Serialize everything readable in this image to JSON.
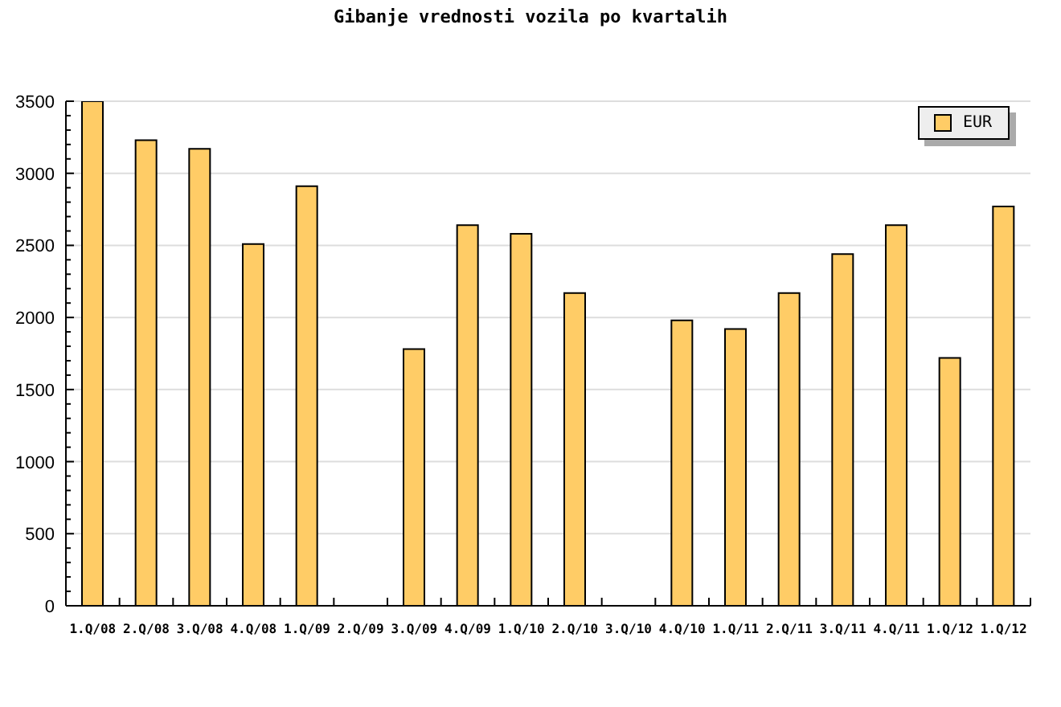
{
  "chart_data": {
    "type": "bar",
    "title": "Gibanje vrednosti vozila po kvartalih",
    "categories": [
      "1.Q/08",
      "2.Q/08",
      "3.Q/08",
      "4.Q/08",
      "1.Q/09",
      "2.Q/09",
      "3.Q/09",
      "4.Q/09",
      "1.Q/10",
      "2.Q/10",
      "3.Q/10",
      "4.Q/10",
      "1.Q/11",
      "2.Q/11",
      "3.Q/11",
      "4.Q/11",
      "1.Q/12",
      "1.Q/12"
    ],
    "series": [
      {
        "name": "EUR",
        "color": "#ffcc66",
        "values": [
          3500,
          3230,
          3170,
          2510,
          2910,
          null,
          1780,
          2640,
          2580,
          2170,
          null,
          1980,
          1920,
          2170,
          2440,
          2640,
          1720,
          2770
        ]
      }
    ],
    "ylim": [
      0,
      3500
    ],
    "yticks": [
      0,
      {
        "value": 100,
        "label": null
      },
      {
        "value": 200,
        "label": null
      },
      {
        "value": 300,
        "label": null
      },
      {
        "value": 400,
        "label": null
      },
      500,
      {
        "value": 600,
        "label": null
      },
      {
        "value": 700,
        "label": null
      },
      {
        "value": 800,
        "label": null
      },
      {
        "value": 900,
        "label": null
      },
      1000,
      {
        "value": 1100,
        "label": null
      },
      {
        "value": 1200,
        "label": null
      },
      {
        "value": 1300,
        "label": null
      },
      {
        "value": 1400,
        "label": null
      },
      1500,
      {
        "value": 1600,
        "label": null
      },
      {
        "value": 1700,
        "label": null
      },
      {
        "value": 1800,
        "label": null
      },
      {
        "value": 1900,
        "label": null
      },
      2000,
      {
        "value": 2100,
        "label": null
      },
      {
        "value": 2200,
        "label": null
      },
      {
        "value": 2300,
        "label": null
      },
      {
        "value": 2400,
        "label": null
      },
      2500,
      {
        "value": 2600,
        "label": null
      },
      {
        "value": 2700,
        "label": null
      },
      {
        "value": 2800,
        "label": null
      },
      {
        "value": 2900,
        "label": null
      },
      3000,
      {
        "value": 3100,
        "label": null
      },
      {
        "value": 3200,
        "label": null
      },
      {
        "value": 3300,
        "label": null
      },
      {
        "value": 3400,
        "label": null
      },
      3500
    ],
    "grid": "y",
    "legend": "top right"
  }
}
